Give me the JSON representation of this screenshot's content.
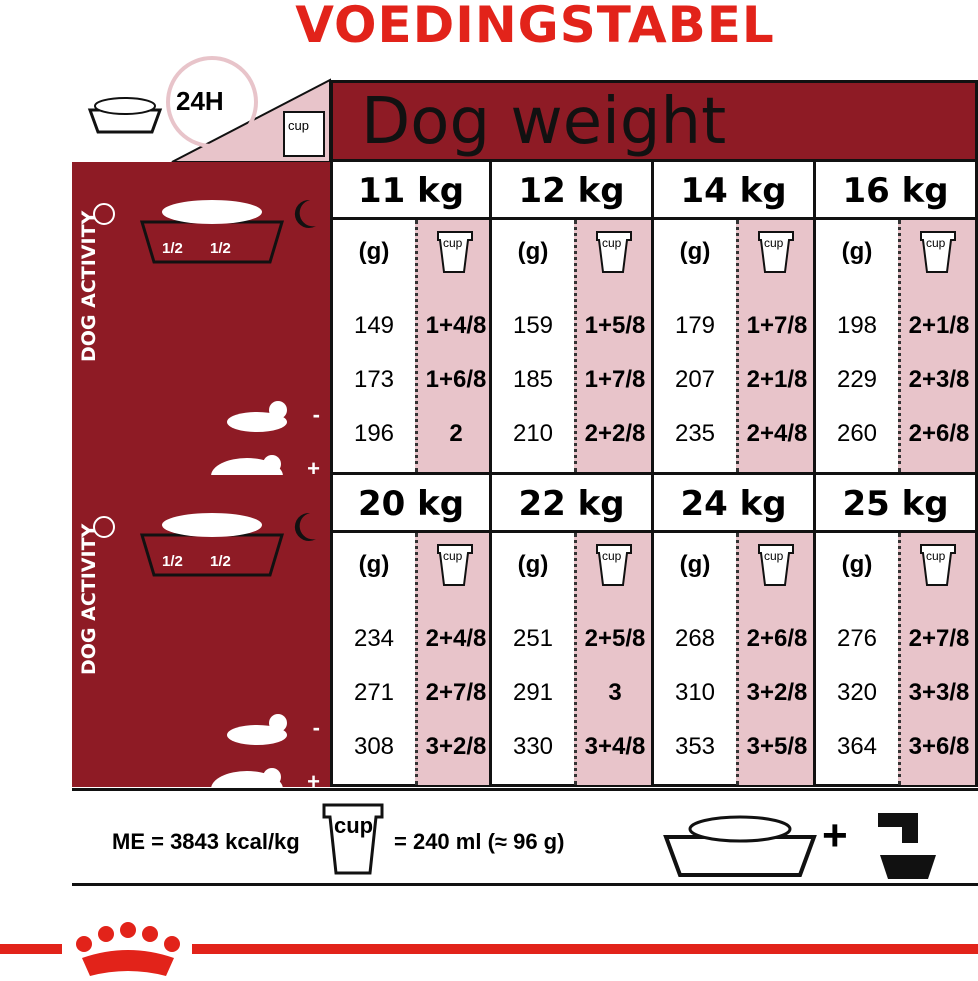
{
  "title": "VOEDINGSTABEL",
  "header": {
    "time_label": "24H",
    "cup_label": "cup",
    "dog_weight": "Dog weight"
  },
  "activity": {
    "label": "DOG ACTIVITY",
    "half": "1/2",
    "levels": [
      "-",
      "+",
      "++"
    ]
  },
  "units": {
    "grams": "(g)",
    "cup": "cup"
  },
  "colors": {
    "dark_red": "#8e1b25",
    "pink": "#e8c4ca",
    "brand_red": "#e2231a"
  },
  "blocks": [
    {
      "weights": [
        {
          "kg": "11 kg",
          "rows": [
            [
              "149",
              "1+4/8"
            ],
            [
              "173",
              "1+6/8"
            ],
            [
              "196",
              "2"
            ]
          ]
        },
        {
          "kg": "12 kg",
          "rows": [
            [
              "159",
              "1+5/8"
            ],
            [
              "185",
              "1+7/8"
            ],
            [
              "210",
              "2+2/8"
            ]
          ]
        },
        {
          "kg": "14 kg",
          "rows": [
            [
              "179",
              "1+7/8"
            ],
            [
              "207",
              "2+1/8"
            ],
            [
              "235",
              "2+4/8"
            ]
          ]
        },
        {
          "kg": "16 kg",
          "rows": [
            [
              "198",
              "2+1/8"
            ],
            [
              "229",
              "2+3/8"
            ],
            [
              "260",
              "2+6/8"
            ]
          ]
        }
      ]
    },
    {
      "weights": [
        {
          "kg": "20 kg",
          "rows": [
            [
              "234",
              "2+4/8"
            ],
            [
              "271",
              "2+7/8"
            ],
            [
              "308",
              "3+2/8"
            ]
          ]
        },
        {
          "kg": "22 kg",
          "rows": [
            [
              "251",
              "2+5/8"
            ],
            [
              "291",
              "3"
            ],
            [
              "330",
              "3+4/8"
            ]
          ]
        },
        {
          "kg": "24 kg",
          "rows": [
            [
              "268",
              "2+6/8"
            ],
            [
              "310",
              "3+2/8"
            ],
            [
              "353",
              "3+5/8"
            ]
          ]
        },
        {
          "kg": "25 kg",
          "rows": [
            [
              "276",
              "2+7/8"
            ],
            [
              "320",
              "3+3/8"
            ],
            [
              "364",
              "3+6/8"
            ]
          ]
        }
      ]
    }
  ],
  "footer": {
    "energy": "ME = 3843 kcal/kg",
    "cup_label": "cup",
    "cup_equiv": "= 240 ml (≈ 96 g)",
    "plus": "+"
  }
}
